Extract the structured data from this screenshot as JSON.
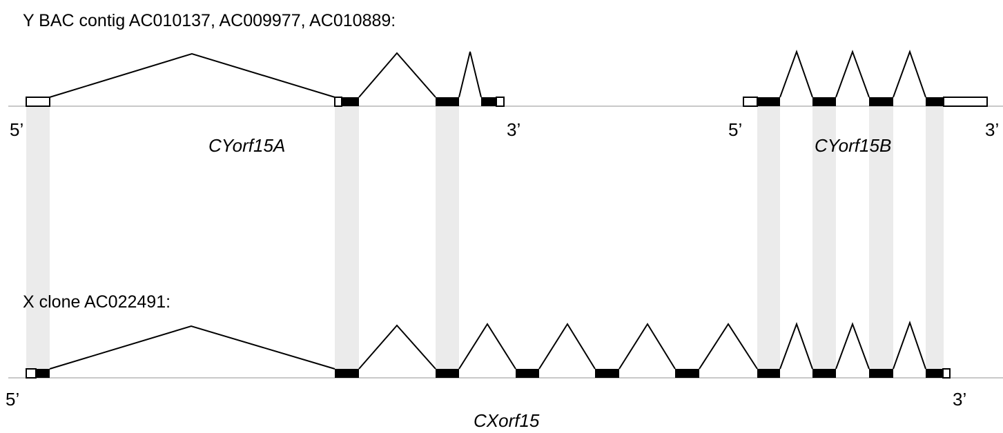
{
  "colors": {
    "background": "#ffffff",
    "axis_line": "#c8c8c8",
    "alignment_band": "#ebebeb",
    "coding_exon": "#000000",
    "utr_fill": "#ffffff",
    "intron_line": "#000000",
    "text": "#000000"
  },
  "top_track": {
    "header": "Y BAC contig AC010137, AC009977, AC010889:",
    "genes": [
      {
        "name": "CYorf15A",
        "five_prime": "5’",
        "three_prime": "3’"
      },
      {
        "name": "CYorf15B",
        "five_prime": "5’",
        "three_prime": "3’"
      }
    ]
  },
  "bottom_track": {
    "header": "X clone AC022491:",
    "genes": [
      {
        "name": "CXorf15",
        "five_prime": "5’",
        "three_prime": "3’"
      }
    ]
  }
}
